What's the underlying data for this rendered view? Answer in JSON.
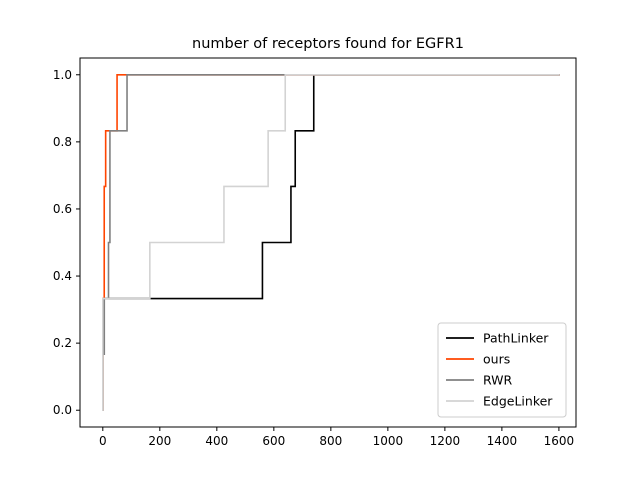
{
  "chart_data": {
    "type": "line",
    "title": "number of receptors found for EGFR1",
    "xlabel": "",
    "ylabel": "",
    "xlim": [
      -80,
      1660
    ],
    "ylim": [
      -0.05,
      1.05
    ],
    "x_ticks": [
      0,
      200,
      400,
      600,
      800,
      1000,
      1200,
      1400,
      1600
    ],
    "y_ticks": [
      0.0,
      0.2,
      0.4,
      0.6,
      0.8,
      1.0
    ],
    "x_tick_labels": [
      "0",
      "200",
      "400",
      "600",
      "800",
      "1000",
      "1200",
      "1400",
      "1600"
    ],
    "y_tick_labels": [
      "0.0",
      "0.2",
      "0.4",
      "0.6",
      "0.8",
      "1.0"
    ],
    "grid": false,
    "legend_position": "lower-right",
    "series": [
      {
        "name": "PathLinker",
        "color": "#000000",
        "step": true,
        "points": [
          [
            0,
            0
          ],
          [
            0,
            0.167
          ],
          [
            5,
            0.167
          ],
          [
            5,
            0.333
          ],
          [
            560,
            0.333
          ],
          [
            560,
            0.5
          ],
          [
            660,
            0.5
          ],
          [
            660,
            0.667
          ],
          [
            675,
            0.667
          ],
          [
            675,
            0.833
          ],
          [
            740,
            0.833
          ],
          [
            740,
            1.0
          ],
          [
            1600,
            1.0
          ]
        ]
      },
      {
        "name": "ours",
        "color": "#ff4500",
        "step": true,
        "points": [
          [
            0,
            0
          ],
          [
            0,
            0.333
          ],
          [
            5,
            0.333
          ],
          [
            5,
            0.667
          ],
          [
            10,
            0.667
          ],
          [
            10,
            0.833
          ],
          [
            50,
            0.833
          ],
          [
            50,
            1.0
          ],
          [
            1600,
            1.0
          ]
        ]
      },
      {
        "name": "RWR",
        "color": "#808080",
        "step": true,
        "points": [
          [
            0,
            0
          ],
          [
            0,
            0.167
          ],
          [
            5,
            0.167
          ],
          [
            5,
            0.333
          ],
          [
            20,
            0.333
          ],
          [
            20,
            0.5
          ],
          [
            25,
            0.5
          ],
          [
            25,
            0.833
          ],
          [
            85,
            0.833
          ],
          [
            85,
            1.0
          ],
          [
            1600,
            1.0
          ]
        ]
      },
      {
        "name": "EdgeLinker",
        "color": "#d3d3d3",
        "step": true,
        "points": [
          [
            0,
            0
          ],
          [
            0,
            0.333
          ],
          [
            165,
            0.333
          ],
          [
            165,
            0.5
          ],
          [
            425,
            0.5
          ],
          [
            425,
            0.667
          ],
          [
            580,
            0.667
          ],
          [
            580,
            0.833
          ],
          [
            640,
            0.833
          ],
          [
            640,
            1.0
          ],
          [
            1600,
            1.0
          ]
        ]
      }
    ]
  }
}
